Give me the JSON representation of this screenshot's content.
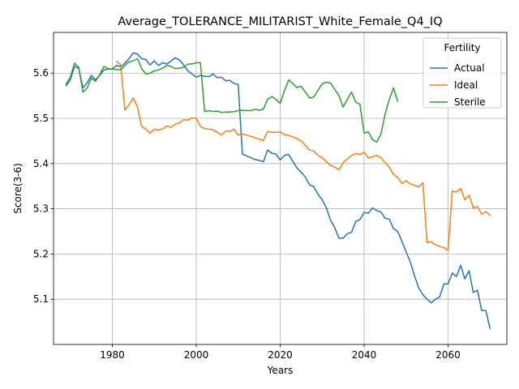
{
  "chart_data": {
    "type": "line",
    "title": "Average_TOLERANCE_MILITARIST_White_Female_Q4_IQ",
    "xlabel": "Years",
    "ylabel": "Score(3-6)",
    "xlim": [
      1966,
      2074
    ],
    "ylim": [
      5.0,
      5.69
    ],
    "x_ticks": [
      1980,
      2000,
      2020,
      2040,
      2060
    ],
    "y_ticks": [
      5.1,
      5.2,
      5.3,
      5.4,
      5.5,
      5.6
    ],
    "grid": true,
    "legend": {
      "title": "Fertility",
      "placement": "top-right"
    },
    "series": [
      {
        "name": "Actual",
        "color": "#1f77b4",
        "points": [
          [
            1969,
            5.572
          ],
          [
            1970,
            5.585
          ],
          [
            1971,
            5.615
          ],
          [
            1972,
            5.61
          ],
          [
            1973,
            5.568
          ],
          [
            1974,
            5.578
          ],
          [
            1975,
            5.595
          ],
          [
            1976,
            5.585
          ],
          [
            1977,
            5.595
          ],
          [
            1978,
            5.607
          ],
          [
            1979,
            5.609
          ],
          [
            1980,
            5.609
          ],
          [
            1981,
            5.617
          ],
          [
            1982,
            5.614
          ],
          [
            1983,
            5.622
          ],
          [
            1984,
            5.632
          ],
          [
            1985,
            5.645
          ],
          [
            1986,
            5.642
          ],
          [
            1987,
            5.632
          ],
          [
            1988,
            5.63
          ],
          [
            1989,
            5.618
          ],
          [
            1990,
            5.627
          ],
          [
            1991,
            5.617
          ],
          [
            1992,
            5.623
          ],
          [
            1993,
            5.62
          ],
          [
            1994,
            5.627
          ],
          [
            1995,
            5.634
          ],
          [
            1996,
            5.629
          ],
          [
            1997,
            5.618
          ],
          [
            1998,
            5.605
          ],
          [
            1999,
            5.598
          ],
          [
            2000,
            5.591
          ],
          [
            2001,
            5.595
          ],
          [
            2002,
            5.593
          ],
          [
            2003,
            5.592
          ],
          [
            2004,
            5.598
          ],
          [
            2005,
            5.59
          ],
          [
            2006,
            5.591
          ],
          [
            2007,
            5.583
          ],
          [
            2008,
            5.584
          ],
          [
            2009,
            5.577
          ],
          [
            2010,
            5.575
          ],
          [
            2011,
            5.421
          ],
          [
            2012,
            5.417
          ],
          [
            2013,
            5.413
          ],
          [
            2014,
            5.409
          ],
          [
            2015,
            5.407
          ],
          [
            2016,
            5.404
          ],
          [
            2017,
            5.43
          ],
          [
            2018,
            5.423
          ],
          [
            2019,
            5.421
          ],
          [
            2020,
            5.408
          ],
          [
            2021,
            5.418
          ],
          [
            2022,
            5.42
          ],
          [
            2023,
            5.405
          ],
          [
            2024,
            5.39
          ],
          [
            2025,
            5.381
          ],
          [
            2026,
            5.37
          ],
          [
            2027,
            5.353
          ],
          [
            2028,
            5.349
          ],
          [
            2029,
            5.332
          ],
          [
            2030,
            5.32
          ],
          [
            2031,
            5.302
          ],
          [
            2032,
            5.275
          ],
          [
            2033,
            5.258
          ],
          [
            2034,
            5.235
          ],
          [
            2035,
            5.235
          ],
          [
            2036,
            5.245
          ],
          [
            2037,
            5.248
          ],
          [
            2038,
            5.272
          ],
          [
            2039,
            5.276
          ],
          [
            2040,
            5.292
          ],
          [
            2041,
            5.29
          ],
          [
            2042,
            5.302
          ],
          [
            2043,
            5.296
          ],
          [
            2044,
            5.293
          ],
          [
            2045,
            5.279
          ],
          [
            2046,
            5.277
          ],
          [
            2047,
            5.256
          ],
          [
            2048,
            5.25
          ],
          [
            2049,
            5.228
          ],
          [
            2050,
            5.205
          ],
          [
            2051,
            5.182
          ],
          [
            2052,
            5.152
          ],
          [
            2053,
            5.125
          ],
          [
            2054,
            5.11
          ],
          [
            2055,
            5.1
          ],
          [
            2056,
            5.092
          ],
          [
            2057,
            5.1
          ],
          [
            2058,
            5.105
          ],
          [
            2059,
            5.134
          ],
          [
            2060,
            5.134
          ],
          [
            2061,
            5.158
          ],
          [
            2062,
            5.15
          ],
          [
            2063,
            5.175
          ],
          [
            2064,
            5.145
          ],
          [
            2065,
            5.163
          ],
          [
            2066,
            5.115
          ],
          [
            2067,
            5.12
          ],
          [
            2068,
            5.075
          ],
          [
            2069,
            5.075
          ],
          [
            2070,
            5.035
          ]
        ]
      },
      {
        "name": "Ideal",
        "color": "#ff7f0e",
        "points": [
          [
            1981,
            5.626
          ],
          [
            1982,
            5.618
          ],
          [
            1983,
            5.518
          ],
          [
            1984,
            5.53
          ],
          [
            1985,
            5.545
          ],
          [
            1986,
            5.525
          ],
          [
            1987,
            5.482
          ],
          [
            1988,
            5.476
          ],
          [
            1989,
            5.467
          ],
          [
            1990,
            5.476
          ],
          [
            1991,
            5.474
          ],
          [
            1992,
            5.477
          ],
          [
            1993,
            5.483
          ],
          [
            1994,
            5.48
          ],
          [
            1995,
            5.487
          ],
          [
            1996,
            5.49
          ],
          [
            1997,
            5.497
          ],
          [
            1998,
            5.496
          ],
          [
            1999,
            5.501
          ],
          [
            2000,
            5.5
          ],
          [
            2001,
            5.482
          ],
          [
            2002,
            5.477
          ],
          [
            2003,
            5.476
          ],
          [
            2004,
            5.475
          ],
          [
            2005,
            5.469
          ],
          [
            2006,
            5.463
          ],
          [
            2007,
            5.472
          ],
          [
            2008,
            5.471
          ],
          [
            2009,
            5.476
          ],
          [
            2010,
            5.463
          ],
          [
            2011,
            5.465
          ],
          [
            2012,
            5.463
          ],
          [
            2013,
            5.46
          ],
          [
            2014,
            5.457
          ],
          [
            2015,
            5.454
          ],
          [
            2016,
            5.451
          ],
          [
            2017,
            5.471
          ],
          [
            2018,
            5.469
          ],
          [
            2019,
            5.469
          ],
          [
            2020,
            5.47
          ],
          [
            2021,
            5.464
          ],
          [
            2022,
            5.462
          ],
          [
            2023,
            5.459
          ],
          [
            2024,
            5.455
          ],
          [
            2025,
            5.45
          ],
          [
            2026,
            5.44
          ],
          [
            2027,
            5.43
          ],
          [
            2028,
            5.428
          ],
          [
            2029,
            5.418
          ],
          [
            2030,
            5.413
          ],
          [
            2031,
            5.404
          ],
          [
            2032,
            5.396
          ],
          [
            2033,
            5.392
          ],
          [
            2034,
            5.386
          ],
          [
            2035,
            5.402
          ],
          [
            2036,
            5.41
          ],
          [
            2037,
            5.418
          ],
          [
            2038,
            5.422
          ],
          [
            2039,
            5.42
          ],
          [
            2040,
            5.425
          ],
          [
            2041,
            5.412
          ],
          [
            2042,
            5.415
          ],
          [
            2043,
            5.418
          ],
          [
            2044,
            5.413
          ],
          [
            2045,
            5.402
          ],
          [
            2046,
            5.392
          ],
          [
            2047,
            5.376
          ],
          [
            2048,
            5.369
          ],
          [
            2049,
            5.356
          ],
          [
            2050,
            5.362
          ],
          [
            2051,
            5.355
          ],
          [
            2052,
            5.352
          ],
          [
            2053,
            5.348
          ],
          [
            2054,
            5.358
          ],
          [
            2055,
            5.225
          ],
          [
            2056,
            5.227
          ],
          [
            2057,
            5.22
          ],
          [
            2058,
            5.217
          ],
          [
            2059,
            5.214
          ],
          [
            2060,
            5.208
          ],
          [
            2061,
            5.339
          ],
          [
            2062,
            5.337
          ],
          [
            2063,
            5.345
          ],
          [
            2064,
            5.32
          ],
          [
            2065,
            5.33
          ],
          [
            2066,
            5.302
          ],
          [
            2067,
            5.305
          ],
          [
            2068,
            5.288
          ],
          [
            2069,
            5.294
          ],
          [
            2070,
            5.285
          ]
        ]
      },
      {
        "name": "Sterile",
        "color": "#2ca02c",
        "points": [
          [
            1969,
            5.576
          ],
          [
            1970,
            5.591
          ],
          [
            1971,
            5.622
          ],
          [
            1972,
            5.613
          ],
          [
            1973,
            5.558
          ],
          [
            1974,
            5.567
          ],
          [
            1975,
            5.589
          ],
          [
            1976,
            5.582
          ],
          [
            1977,
            5.596
          ],
          [
            1978,
            5.615
          ],
          [
            1979,
            5.61
          ],
          [
            1980,
            5.609
          ],
          [
            1981,
            5.608
          ],
          [
            1982,
            5.607
          ],
          [
            1983,
            5.617
          ],
          [
            1984,
            5.625
          ],
          [
            1985,
            5.627
          ],
          [
            1986,
            5.632
          ],
          [
            1987,
            5.61
          ],
          [
            1988,
            5.598
          ],
          [
            1989,
            5.6
          ],
          [
            1990,
            5.605
          ],
          [
            1991,
            5.607
          ],
          [
            1992,
            5.611
          ],
          [
            1993,
            5.617
          ],
          [
            1994,
            5.615
          ],
          [
            1995,
            5.61
          ],
          [
            1996,
            5.611
          ],
          [
            1997,
            5.613
          ],
          [
            1998,
            5.62
          ],
          [
            1999,
            5.62
          ],
          [
            2000,
            5.623
          ],
          [
            2001,
            5.623
          ],
          [
            2002,
            5.515
          ],
          [
            2003,
            5.517
          ],
          [
            2004,
            5.515
          ],
          [
            2005,
            5.516
          ],
          [
            2006,
            5.513
          ],
          [
            2007,
            5.514
          ],
          [
            2008,
            5.514
          ],
          [
            2009,
            5.515
          ],
          [
            2010,
            5.517
          ],
          [
            2011,
            5.518
          ],
          [
            2012,
            5.517
          ],
          [
            2013,
            5.517
          ],
          [
            2014,
            5.52
          ],
          [
            2015,
            5.518
          ],
          [
            2016,
            5.52
          ],
          [
            2017,
            5.542
          ],
          [
            2018,
            5.548
          ],
          [
            2019,
            5.542
          ],
          [
            2020,
            5.533
          ],
          [
            2021,
            5.56
          ],
          [
            2022,
            5.585
          ],
          [
            2023,
            5.577
          ],
          [
            2024,
            5.568
          ],
          [
            2025,
            5.571
          ],
          [
            2026,
            5.558
          ],
          [
            2027,
            5.545
          ],
          [
            2028,
            5.547
          ],
          [
            2029,
            5.562
          ],
          [
            2030,
            5.576
          ],
          [
            2031,
            5.58
          ],
          [
            2032,
            5.578
          ],
          [
            2033,
            5.564
          ],
          [
            2034,
            5.55
          ],
          [
            2035,
            5.525
          ],
          [
            2036,
            5.542
          ],
          [
            2037,
            5.558
          ],
          [
            2038,
            5.536
          ],
          [
            2039,
            5.531
          ],
          [
            2040,
            5.467
          ],
          [
            2041,
            5.47
          ],
          [
            2042,
            5.453
          ],
          [
            2043,
            5.447
          ],
          [
            2044,
            5.465
          ],
          [
            2045,
            5.51
          ],
          [
            2046,
            5.542
          ],
          [
            2047,
            5.567
          ],
          [
            2048,
            5.538
          ]
        ]
      }
    ]
  }
}
